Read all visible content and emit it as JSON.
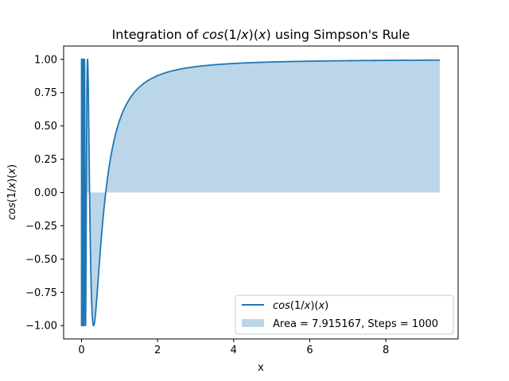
{
  "chart_data": {
    "type": "area",
    "title": {
      "prefix": "Integration of ",
      "func_a": "cos",
      "func_b": "(1/",
      "func_c": "x",
      "func_d": ")(",
      "func_e": "x",
      "func_f": ")",
      "suffix": " using Simpson's Rule"
    },
    "xlabel": "x",
    "ylabel": {
      "a": "cos",
      "b": "(1/",
      "c": "x",
      "d": ")(",
      "e": "x",
      "f": ")"
    },
    "xlim": [
      -0.47,
      9.9
    ],
    "ylim": [
      -1.1,
      1.1
    ],
    "x_range": [
      0.001,
      9.42
    ],
    "function": "cos(1/x)",
    "x_ticks": [
      0,
      2,
      4,
      6,
      8
    ],
    "x_tick_labels": [
      "0",
      "2",
      "4",
      "6",
      "8"
    ],
    "y_ticks": [
      -1.0,
      -0.75,
      -0.5,
      -0.25,
      0.0,
      0.25,
      0.5,
      0.75,
      1.0
    ],
    "y_tick_labels": [
      "−1.00",
      "−0.75",
      "−0.50",
      "−0.25",
      "0.00",
      "0.25",
      "0.50",
      "0.75",
      "1.00"
    ],
    "grid": false,
    "legend_position": "bottom-right",
    "series": [
      {
        "name": "cos(1/x)(x)",
        "type": "line",
        "color": "#1f77b4",
        "label_parts": {
          "a": "cos",
          "b": "(1/",
          "c": "x",
          "d": ")(",
          "e": "x",
          "f": ")"
        }
      },
      {
        "name": "Area = 7.915167, Steps = 1000",
        "type": "area",
        "color": "#1f77b4",
        "fill_color": "#bcd6e9",
        "area": 7.915167,
        "steps": 1000,
        "label": "Area = 7.915167, Steps = 1000"
      }
    ]
  }
}
